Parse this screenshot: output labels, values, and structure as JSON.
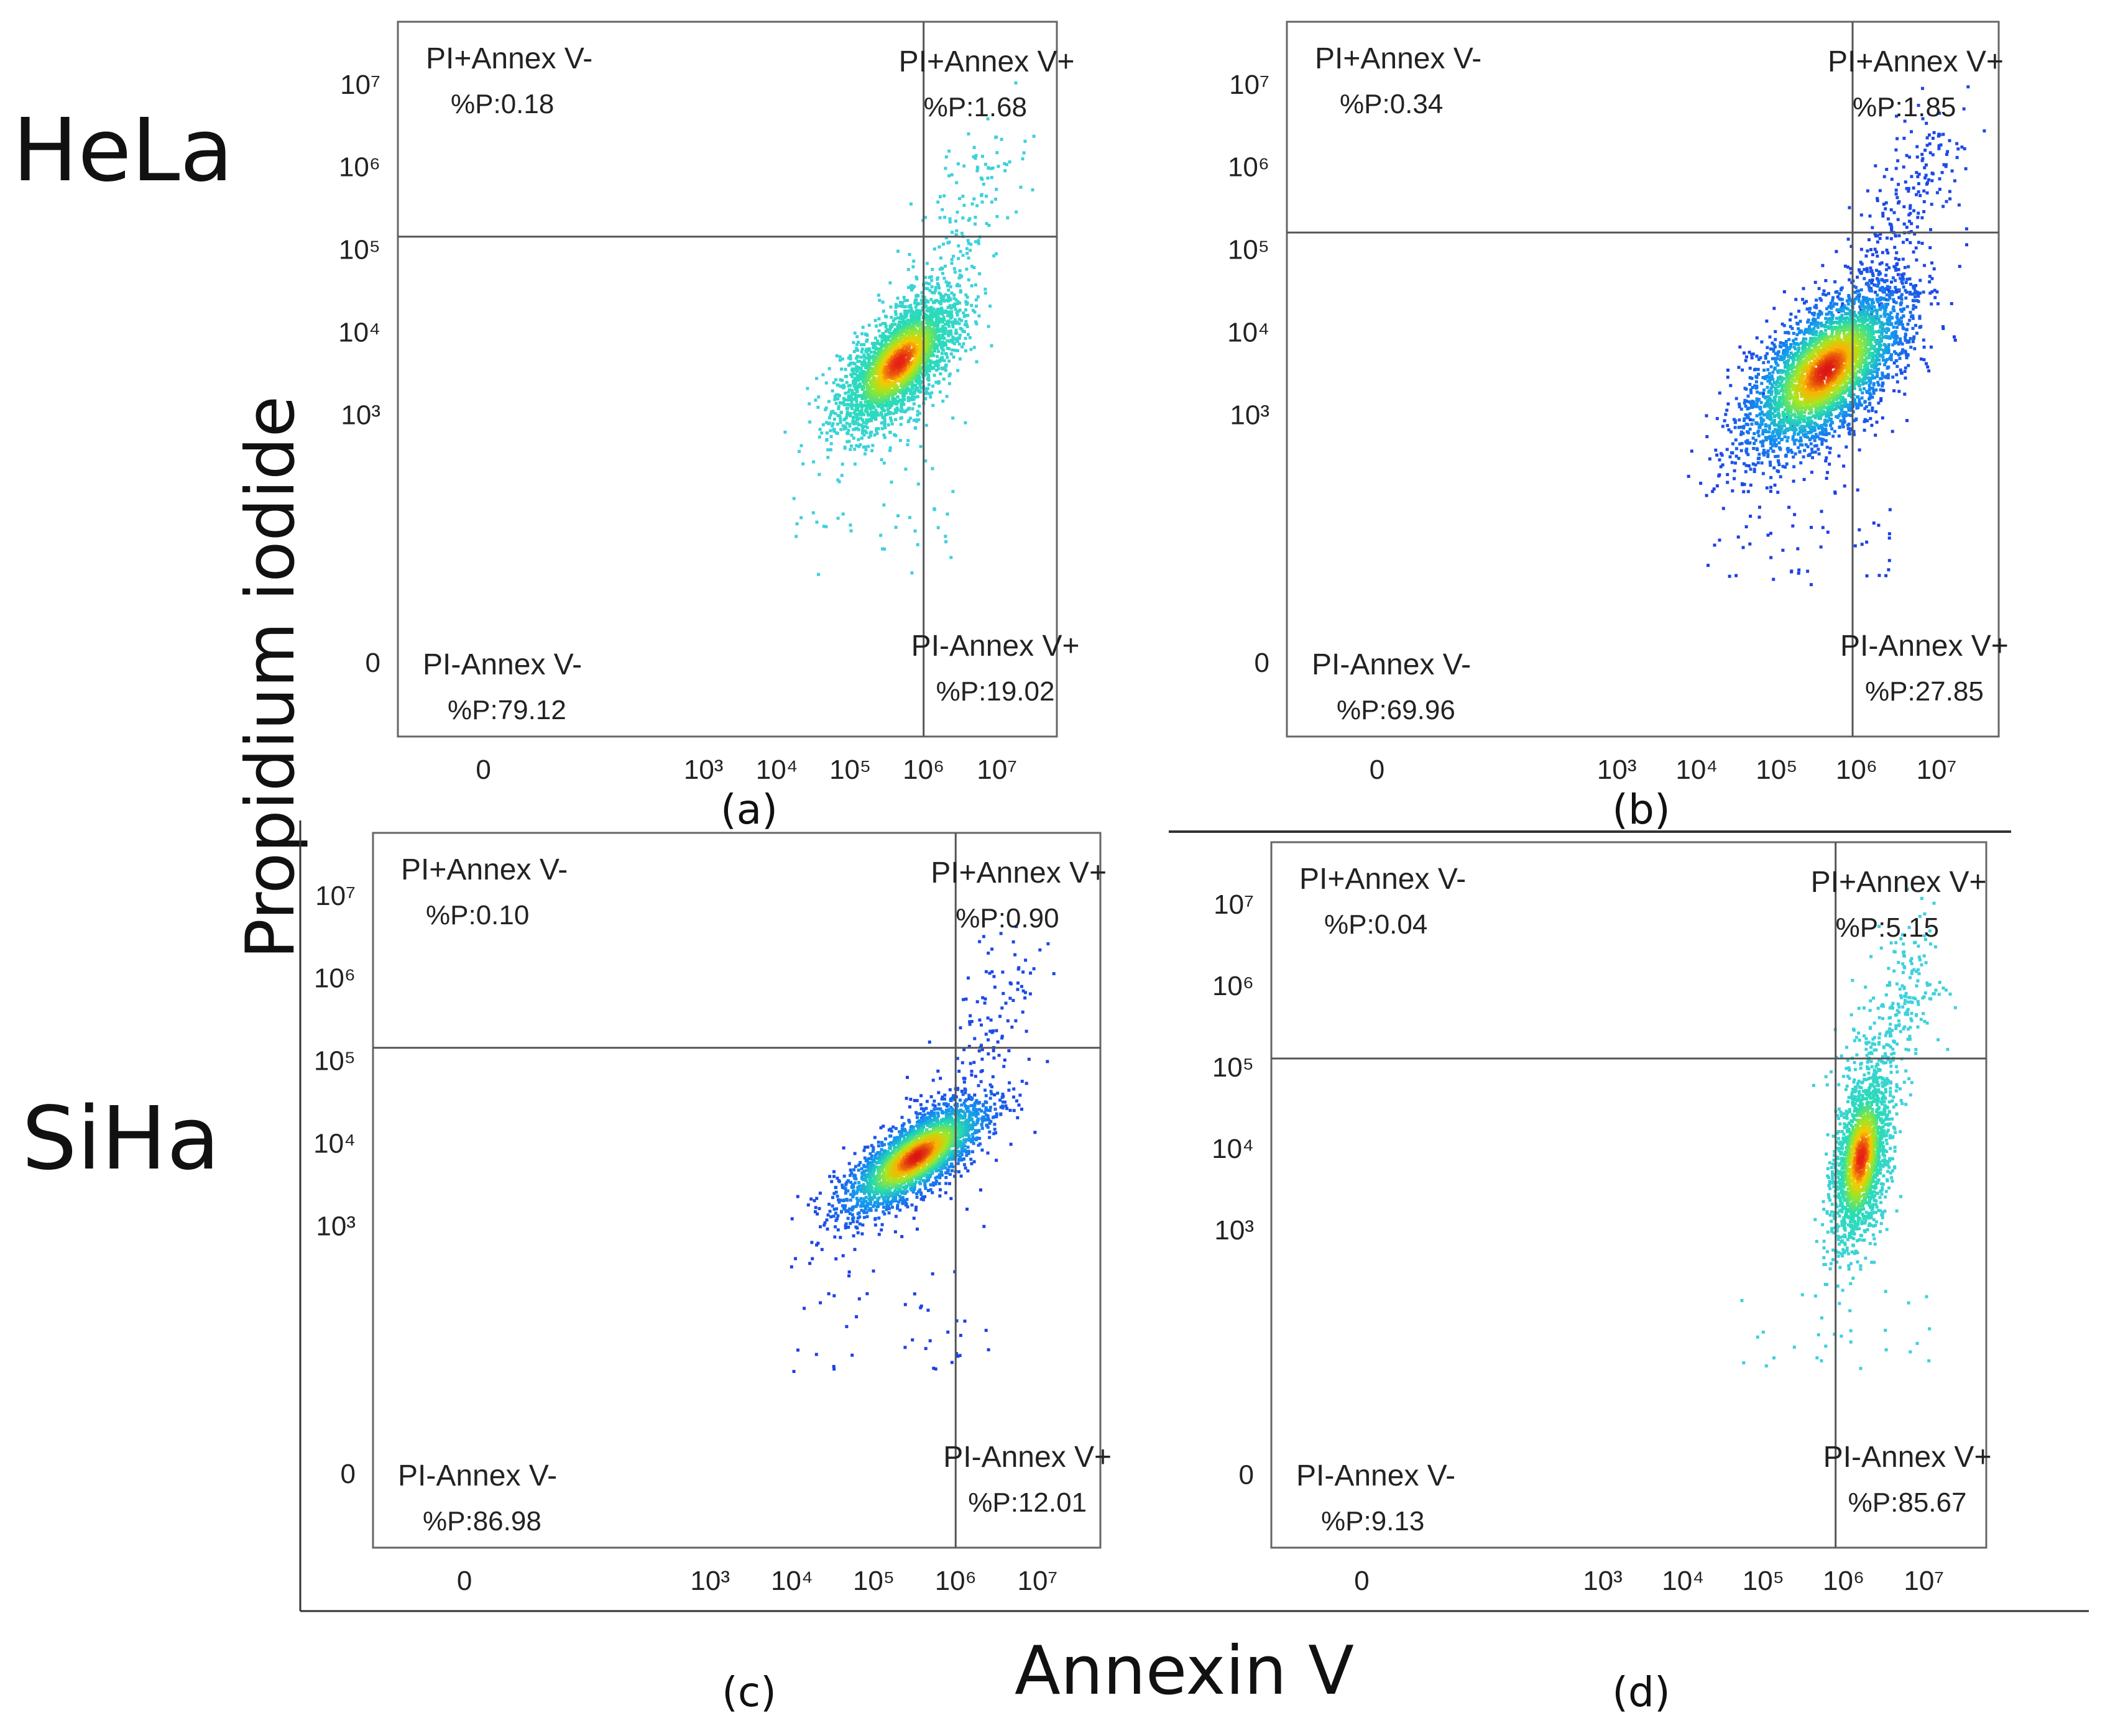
{
  "chart_data": {
    "type": "scatter",
    "figure": {
      "row_labels": [
        "HeLa",
        "SiHa"
      ],
      "x_axis_title": "Annexin V",
      "y_axis_title": "Propidium iodide",
      "x_tick_labels": [
        "0",
        "10³",
        "10⁴",
        "10⁵",
        "10⁶",
        "10⁷"
      ],
      "y_tick_labels": [
        "0",
        "10³",
        "10⁴",
        "10⁵",
        "10⁶",
        "10⁷"
      ]
    },
    "panels": [
      {
        "label": "(a)",
        "cell_line": "HeLa",
        "palette": "cyan",
        "gate": {
          "x": 6.0,
          "y": 5.15
        },
        "cloud": {
          "cx": 5.65,
          "cy": 3.65,
          "sx": 0.42,
          "sy": 0.42,
          "rho": 0.65,
          "n": 2600
        },
        "tail": {
          "n": 140,
          "x0": 6.0,
          "y0": 4.4,
          "x1": 7.1,
          "y1": 6.3
        },
        "quadrants": {
          "ul": {
            "label": "PI+Annex V-",
            "pct": "%P:0.18"
          },
          "ur": {
            "label": "PI+Annex V+",
            "pct": "%P:1.68"
          },
          "ll": {
            "label": "PI-Annex V-",
            "pct": "%P:79.12"
          },
          "lr": {
            "label": "PI-Annex V+",
            "pct": "%P:19.02"
          }
        }
      },
      {
        "label": "(b)",
        "cell_line": "HeLa",
        "palette": "blue",
        "gate": {
          "x": 5.95,
          "y": 5.2
        },
        "cloud": {
          "cx": 5.6,
          "cy": 3.55,
          "sx": 0.5,
          "sy": 0.5,
          "rho": 0.6,
          "n": 3600
        },
        "tail": {
          "n": 260,
          "x0": 6.0,
          "y0": 4.2,
          "x1": 7.1,
          "y1": 6.5
        },
        "quadrants": {
          "ul": {
            "label": "PI+Annex V-",
            "pct": "%P:0.34"
          },
          "ur": {
            "label": "PI+Annex V+",
            "pct": "%P:1.85"
          },
          "ll": {
            "label": "PI-Annex V-",
            "pct": "%P:69.96"
          },
          "lr": {
            "label": "PI-Annex V+",
            "pct": "%P:27.85"
          }
        }
      },
      {
        "label": "(c)",
        "cell_line": "SiHa",
        "palette": "blue",
        "gate": {
          "x": 6.0,
          "y": 5.15
        },
        "cloud": {
          "cx": 5.5,
          "cy": 3.85,
          "sx": 0.45,
          "sy": 0.35,
          "rho": 0.75,
          "n": 2500
        },
        "tail": {
          "n": 110,
          "x0": 6.0,
          "y0": 4.6,
          "x1": 6.8,
          "y1": 6.4
        },
        "quadrants": {
          "ul": {
            "label": "PI+Annex V-",
            "pct": "%P:0.10"
          },
          "ur": {
            "label": "PI+Annex V+",
            "pct": "%P:0.90"
          },
          "ll": {
            "label": "PI-Annex V-",
            "pct": "%P:86.98"
          },
          "lr": {
            "label": "PI-Annex V+",
            "pct": "%P:12.01"
          }
        }
      },
      {
        "label": "(d)",
        "cell_line": "SiHa",
        "palette": "cyan",
        "gate": {
          "x": 5.9,
          "y": 5.1
        },
        "cloud": {
          "cx": 6.2,
          "cy": 3.9,
          "sx": 0.18,
          "sy": 0.55,
          "rho": 0.4,
          "n": 1700
        },
        "tail": {
          "n": 260,
          "x0": 6.2,
          "y0": 4.8,
          "x1": 7.0,
          "y1": 6.4
        },
        "quadrants": {
          "ul": {
            "label": "PI+Annex V-",
            "pct": "%P:0.04"
          },
          "ur": {
            "label": "PI+Annex V+",
            "pct": "%P:5.15"
          },
          "ll": {
            "label": "PI-Annex V-",
            "pct": "%P:9.13"
          },
          "lr": {
            "label": "PI-Annex V+",
            "pct": "%P:85.67"
          }
        }
      }
    ]
  }
}
